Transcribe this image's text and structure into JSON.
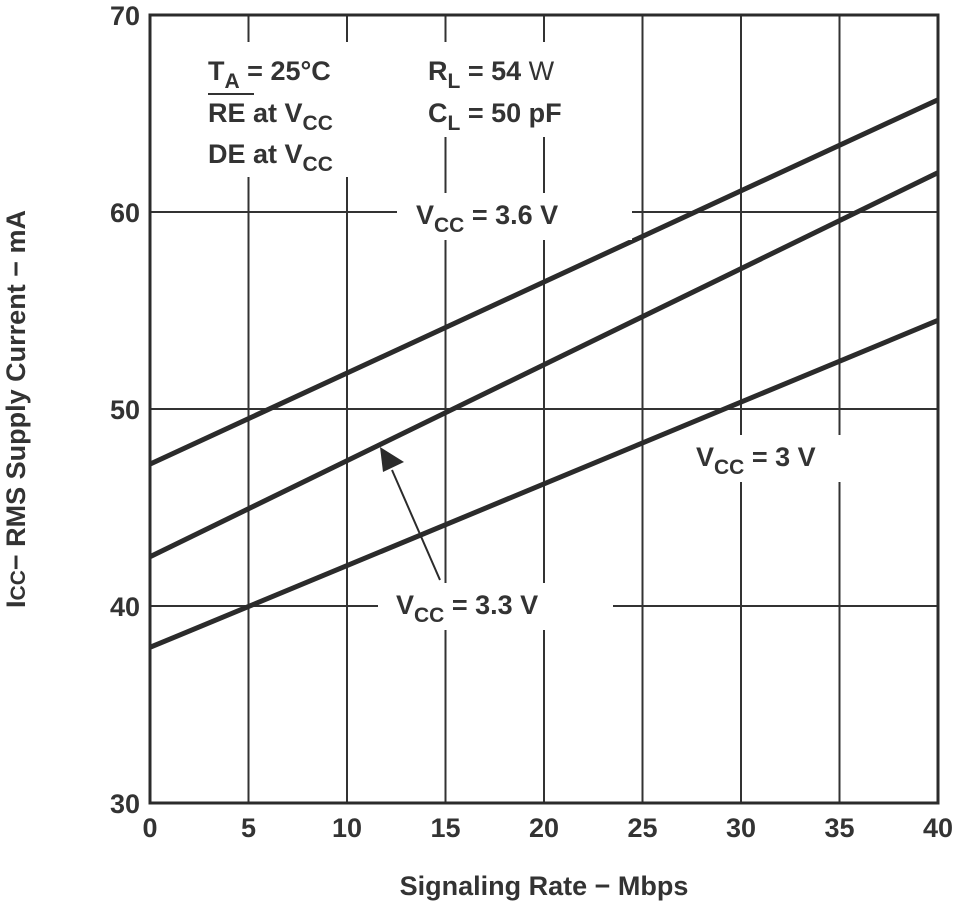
{
  "chart_data": {
    "type": "line",
    "title": "",
    "xlabel": "Signaling Rate − Mbps",
    "ylabel_main": "I",
    "ylabel_sub": "CC",
    "ylabel_rest": "− RMS Supply Current − mA",
    "xlim": [
      0,
      40
    ],
    "ylim": [
      30,
      70
    ],
    "xticks": [
      0,
      5,
      10,
      15,
      20,
      25,
      30,
      35,
      40
    ],
    "yticks": [
      30,
      40,
      50,
      60,
      70
    ],
    "grid": true,
    "line_color": "#2b2b2b",
    "series": [
      {
        "name": "VCC = 3.6 V",
        "x": [
          0,
          40
        ],
        "y": [
          47.2,
          65.7
        ]
      },
      {
        "name": "VCC = 3.3 V",
        "x": [
          0,
          40
        ],
        "y": [
          42.5,
          62.0
        ]
      },
      {
        "name": "VCC = 3 V",
        "x": [
          0,
          40
        ],
        "y": [
          37.9,
          54.5
        ]
      }
    ],
    "labels": {
      "v36": {
        "main": "V",
        "sub": "CC",
        "rest": " = 3.6 V"
      },
      "v33": {
        "main": "V",
        "sub": "CC",
        "rest": " = 3.3 V"
      },
      "v3": {
        "main": "V",
        "sub": "CC",
        "rest": " = 3 V"
      }
    },
    "conditions": {
      "ta": {
        "main": "T",
        "sub": "A",
        "rest": " = 25°C"
      },
      "re": {
        "main": "RE",
        "rest": " at V",
        "sub": "CC"
      },
      "de": {
        "main": "DE",
        "rest": " at V",
        "sub": "CC"
      },
      "rl": {
        "main": "R",
        "sub": "L",
        "rest": " = 54 ",
        "unit": "W"
      },
      "cl": {
        "main": "C",
        "sub": "L",
        "rest": " = 50 pF"
      }
    }
  }
}
